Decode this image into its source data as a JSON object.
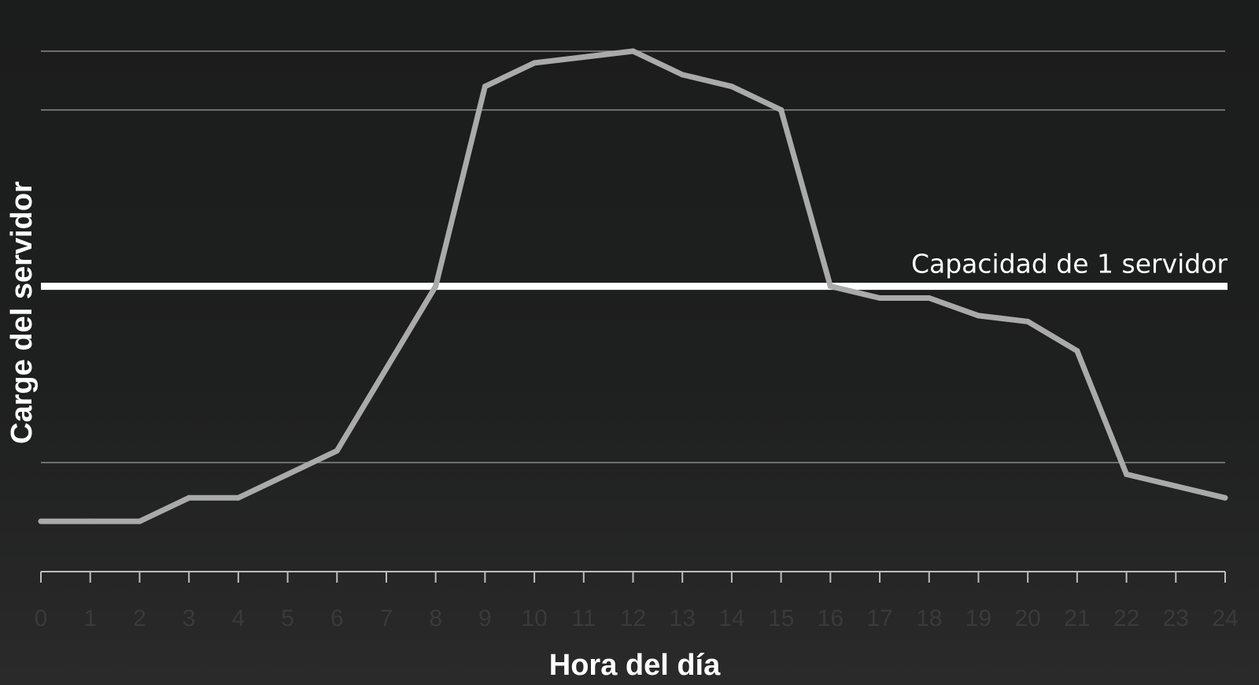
{
  "chart_data": {
    "type": "line",
    "title": "",
    "xlabel": "Hora del día",
    "ylabel": "Carge del servidor",
    "categories": [
      "0",
      "1",
      "2",
      "3",
      "4",
      "5",
      "6",
      "7",
      "8",
      "9",
      "10",
      "11",
      "12",
      "13",
      "14",
      "15",
      "16",
      "17",
      "18",
      "19",
      "20",
      "21",
      "22",
      "23",
      "24"
    ],
    "series": [
      {
        "values": [
          1.0,
          1.0,
          1.0,
          1.2,
          1.2,
          1.4,
          1.6,
          2.3,
          3.0,
          4.7,
          4.9,
          4.95,
          5.0,
          4.8,
          4.7,
          4.5,
          3.0,
          2.9,
          2.9,
          2.75,
          2.7,
          2.45,
          1.4,
          1.3,
          1.2
        ],
        "color": "#aaaaaa"
      }
    ],
    "ylim": [
      0.8,
      5.0
    ],
    "y_gridlines": [
      1.5,
      4.5,
      5.0
    ],
    "reference_line": {
      "label": "Capacidad de 1 servidor",
      "value": 3.0,
      "color": "#ffffff"
    },
    "grid": true,
    "legend": "none"
  }
}
